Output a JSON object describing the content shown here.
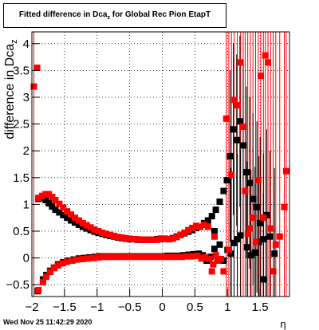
{
  "chart_data": {
    "type": "scatter",
    "title": "Fitted difference in Dca",
    "title_subscript": "z",
    "title_suffix": " for Global Rec Pion EtapT",
    "xlabel": "η",
    "ylabel": "difference in Dca",
    "ylabel_subscript": "z",
    "xlim": [
      -2.0,
      1.95
    ],
    "ylim": [
      -0.72,
      4.22
    ],
    "xticks": [
      -2,
      -1.5,
      -1,
      -0.5,
      0,
      0.5,
      1,
      1.5
    ],
    "xtick_labels": [
      "−2",
      "−1.5",
      "−1",
      "−0.5",
      "0",
      "0.5",
      "1",
      "1.5"
    ],
    "yticks": [
      -0.5,
      0,
      0.5,
      1,
      1.5,
      2,
      2.5,
      3,
      3.5,
      4
    ],
    "ytick_labels": [
      "−0.5",
      "0",
      "0.5",
      "1",
      "1.5",
      "2",
      "2.5",
      "3",
      "3.5",
      "4"
    ],
    "grid": true,
    "footer": "Wed Nov 25 11:42:29 2020",
    "colors": {
      "black_series": "#000000",
      "red_series": "#ff0000",
      "grid": "#000000"
    },
    "series": [
      {
        "color": "black",
        "marker": "square",
        "points": [
          [
            -1.91,
            -0.62
          ],
          [
            -1.83,
            -0.4
          ],
          [
            -1.78,
            -0.32
          ],
          [
            -1.72,
            -0.24
          ],
          [
            -1.66,
            -0.18
          ],
          [
            -1.6,
            -0.12
          ],
          [
            -1.52,
            -0.08
          ],
          [
            -1.44,
            -0.05
          ],
          [
            -1.36,
            -0.03
          ],
          [
            -1.28,
            -0.01
          ],
          [
            -1.2,
            0.0
          ],
          [
            -1.12,
            0.01
          ],
          [
            -1.04,
            0.02
          ],
          [
            -0.96,
            0.03
          ],
          [
            -0.88,
            0.03
          ],
          [
            -0.8,
            0.03
          ],
          [
            -0.72,
            0.03
          ],
          [
            -0.64,
            0.03
          ],
          [
            -0.56,
            0.03
          ],
          [
            -0.48,
            0.03
          ],
          [
            -0.4,
            0.03
          ],
          [
            -0.32,
            0.03
          ],
          [
            -0.24,
            0.03
          ],
          [
            -0.16,
            0.03
          ],
          [
            -0.08,
            0.03
          ],
          [
            0.0,
            0.03
          ],
          [
            0.08,
            0.04
          ],
          [
            0.16,
            0.04
          ],
          [
            0.24,
            0.04
          ],
          [
            0.32,
            0.05
          ],
          [
            0.4,
            0.06
          ],
          [
            0.48,
            0.07
          ],
          [
            0.56,
            0.08
          ],
          [
            0.62,
            0.05
          ],
          [
            0.68,
            -0.05
          ],
          [
            0.74,
            0.02
          ],
          [
            0.8,
            0.17
          ],
          [
            0.85,
            -0.05
          ],
          [
            -1.9,
            1.1
          ],
          [
            -1.85,
            1.12
          ],
          [
            -1.79,
            1.08
          ],
          [
            -1.74,
            1.02
          ],
          [
            -1.69,
            0.96
          ],
          [
            -1.64,
            0.9
          ],
          [
            -1.58,
            0.85
          ],
          [
            -1.52,
            0.8
          ],
          [
            -1.46,
            0.75
          ],
          [
            -1.4,
            0.7
          ],
          [
            -1.34,
            0.66
          ],
          [
            -1.28,
            0.62
          ],
          [
            -1.22,
            0.58
          ],
          [
            -1.16,
            0.55
          ],
          [
            -1.1,
            0.52
          ],
          [
            -1.04,
            0.49
          ],
          [
            -0.98,
            0.47
          ],
          [
            -0.92,
            0.45
          ],
          [
            -0.86,
            0.43
          ],
          [
            -0.8,
            0.41
          ],
          [
            -0.74,
            0.4
          ],
          [
            -0.68,
            0.38
          ],
          [
            -0.62,
            0.37
          ],
          [
            -0.56,
            0.36
          ],
          [
            -0.5,
            0.35
          ],
          [
            -0.44,
            0.35
          ],
          [
            -0.38,
            0.34
          ],
          [
            -0.32,
            0.34
          ],
          [
            -0.26,
            0.34
          ],
          [
            -0.2,
            0.34
          ],
          [
            -0.14,
            0.34
          ],
          [
            -0.08,
            0.35
          ],
          [
            -0.02,
            0.36
          ],
          [
            0.04,
            0.36
          ],
          [
            0.1,
            0.35
          ],
          [
            0.16,
            0.37
          ],
          [
            0.22,
            0.4
          ],
          [
            0.28,
            0.43
          ],
          [
            0.34,
            0.46
          ],
          [
            0.4,
            0.49
          ],
          [
            0.46,
            0.52
          ],
          [
            0.52,
            0.56
          ],
          [
            0.58,
            0.58
          ],
          [
            0.64,
            0.65
          ],
          [
            0.7,
            0.7
          ],
          [
            0.76,
            0.78
          ],
          [
            0.82,
            0.9
          ],
          [
            0.88,
            1.05
          ],
          [
            0.94,
            1.25
          ],
          [
            0.99,
            1.45
          ],
          [
            1.04,
            1.9
          ],
          [
            1.09,
            2.4
          ],
          [
            1.14,
            2.2
          ],
          [
            1.19,
            2.55
          ],
          [
            1.24,
            2.1
          ],
          [
            1.29,
            1.6
          ],
          [
            1.34,
            1.4
          ],
          [
            1.39,
            1.1
          ],
          [
            1.45,
            0.95
          ],
          [
            1.5,
            0.65
          ],
          [
            1.55,
            0.35
          ],
          [
            1.6,
            0.8
          ],
          [
            1.65,
            0.4
          ],
          [
            0.8,
            0.5
          ],
          [
            0.88,
            0.25
          ],
          [
            0.94,
            -0.05
          ],
          [
            1.0,
            0.15
          ],
          [
            1.05,
            0.08
          ],
          [
            1.1,
            0.28
          ],
          [
            1.15,
            0.35
          ],
          [
            1.2,
            0.42
          ],
          [
            1.3,
            0.2
          ],
          [
            1.36,
            0.05
          ],
          [
            1.42,
            0.1
          ],
          [
            1.48,
            0.3
          ],
          [
            1.55,
            -0.4
          ],
          [
            1.72,
            0.08
          ]
        ]
      },
      {
        "color": "red",
        "marker": "square",
        "points": [
          [
            -1.97,
            3.2
          ],
          [
            -1.92,
            3.55
          ],
          [
            -1.9,
            -0.6
          ],
          [
            -1.83,
            -0.45
          ],
          [
            -1.78,
            -0.35
          ],
          [
            -1.72,
            -0.26
          ],
          [
            -1.66,
            -0.19
          ],
          [
            -1.6,
            -0.14
          ],
          [
            -1.53,
            -0.1
          ],
          [
            -1.46,
            -0.07
          ],
          [
            -1.38,
            -0.05
          ],
          [
            -1.3,
            -0.03
          ],
          [
            -1.22,
            -0.02
          ],
          [
            -1.14,
            -0.01
          ],
          [
            -1.06,
            0.0
          ],
          [
            -0.98,
            0.01
          ],
          [
            -0.9,
            0.02
          ],
          [
            -0.82,
            0.02
          ],
          [
            -0.74,
            0.02
          ],
          [
            -0.66,
            0.02
          ],
          [
            -0.58,
            0.02
          ],
          [
            -0.5,
            0.02
          ],
          [
            -0.42,
            0.02
          ],
          [
            -0.34,
            0.02
          ],
          [
            -0.26,
            0.02
          ],
          [
            -0.18,
            0.02
          ],
          [
            -0.1,
            0.02
          ],
          [
            -0.02,
            0.02
          ],
          [
            0.06,
            0.02
          ],
          [
            0.14,
            0.02
          ],
          [
            0.22,
            0.02
          ],
          [
            0.3,
            0.02
          ],
          [
            0.38,
            0.03
          ],
          [
            0.46,
            0.03
          ],
          [
            0.54,
            0.04
          ],
          [
            0.6,
            -0.01
          ],
          [
            0.66,
            0.01
          ],
          [
            0.72,
            -0.02
          ],
          [
            0.78,
            -0.12
          ],
          [
            0.82,
            0.05
          ],
          [
            -1.9,
            1.12
          ],
          [
            -1.84,
            1.16
          ],
          [
            -1.79,
            1.19
          ],
          [
            -1.74,
            1.19
          ],
          [
            -1.69,
            1.14
          ],
          [
            -1.64,
            1.08
          ],
          [
            -1.58,
            1.01
          ],
          [
            -1.52,
            0.94
          ],
          [
            -1.46,
            0.87
          ],
          [
            -1.4,
            0.81
          ],
          [
            -1.34,
            0.75
          ],
          [
            -1.28,
            0.7
          ],
          [
            -1.22,
            0.65
          ],
          [
            -1.16,
            0.61
          ],
          [
            -1.1,
            0.57
          ],
          [
            -1.04,
            0.53
          ],
          [
            -0.98,
            0.5
          ],
          [
            -0.92,
            0.47
          ],
          [
            -0.86,
            0.45
          ],
          [
            -0.8,
            0.43
          ],
          [
            -0.74,
            0.41
          ],
          [
            -0.68,
            0.39
          ],
          [
            -0.62,
            0.38
          ],
          [
            -0.56,
            0.37
          ],
          [
            -0.5,
            0.36
          ],
          [
            -0.44,
            0.35
          ],
          [
            -0.38,
            0.35
          ],
          [
            -0.32,
            0.34
          ],
          [
            -0.26,
            0.34
          ],
          [
            -0.2,
            0.34
          ],
          [
            -0.14,
            0.34
          ],
          [
            -0.08,
            0.34
          ],
          [
            -0.02,
            0.35
          ],
          [
            0.04,
            0.36
          ],
          [
            0.1,
            0.35
          ],
          [
            0.16,
            0.36
          ],
          [
            0.22,
            0.39
          ],
          [
            0.28,
            0.43
          ],
          [
            0.34,
            0.47
          ],
          [
            0.4,
            0.52
          ],
          [
            0.46,
            0.56
          ],
          [
            0.52,
            0.6
          ],
          [
            0.58,
            0.58
          ],
          [
            0.64,
            0.62
          ],
          [
            0.7,
            0.58
          ],
          [
            0.76,
            -0.25
          ],
          [
            0.8,
            0.4
          ],
          [
            0.86,
            -0.05
          ],
          [
            0.9,
            -0.02
          ],
          [
            0.94,
            -0.25
          ],
          [
            0.98,
            2.6
          ],
          [
            1.02,
            0.15
          ],
          [
            1.06,
            1.55
          ],
          [
            1.1,
            2.95
          ],
          [
            1.15,
            2.85
          ],
          [
            1.2,
            3.65
          ],
          [
            1.24,
            2.45
          ],
          [
            1.27,
            1.25
          ],
          [
            1.31,
            0.45
          ],
          [
            1.35,
            0.55
          ],
          [
            1.39,
            0.75
          ],
          [
            1.43,
            0.3
          ],
          [
            1.47,
            1.45
          ],
          [
            1.51,
            3.4
          ],
          [
            1.55,
            0.75
          ],
          [
            1.58,
            3.78
          ],
          [
            1.62,
            3.65
          ],
          [
            1.66,
            0.55
          ],
          [
            1.7,
            -0.25
          ],
          [
            1.74,
            0.25
          ],
          [
            1.8,
            0.4
          ],
          [
            1.87,
            0.95
          ],
          [
            1.9,
            1.62
          ]
        ]
      }
    ]
  }
}
